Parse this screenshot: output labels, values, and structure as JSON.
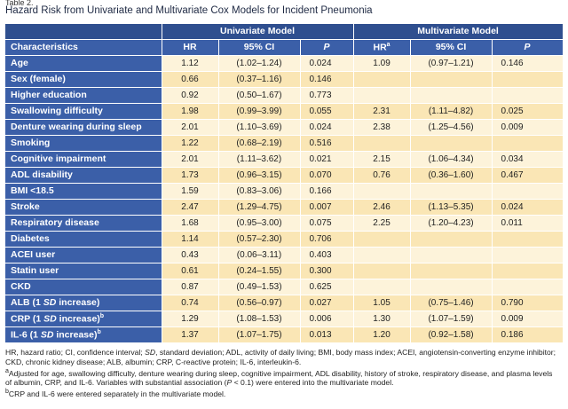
{
  "table_label": "Table 2.",
  "title": "Hazard Risk from Univariate and Multivariate Cox Models for Incident Pneumonia",
  "groups": {
    "univariate": "Univariate Model",
    "multivariate": "Multivariate Model"
  },
  "columns": {
    "characteristics": "Characteristics",
    "hr": "HR",
    "ci": "95% CI",
    "p": "P",
    "hr_m": "HR",
    "hr_m_sup": "a",
    "ci_m": "95% CI",
    "p_m": "P"
  },
  "rows": [
    {
      "name": "Age",
      "hr": "1.12",
      "ci": "(1.02–1.24)",
      "p": "0.024",
      "mhr": "1.09",
      "mci": "(0.97–1.21)",
      "mp": "0.146"
    },
    {
      "name": "Sex (female)",
      "hr": "0.66",
      "ci": "(0.37–1.16)",
      "p": "0.146",
      "mhr": "",
      "mci": "",
      "mp": ""
    },
    {
      "name": "Higher education",
      "hr": "0.92",
      "ci": "(0.50–1.67)",
      "p": "0.773",
      "mhr": "",
      "mci": "",
      "mp": ""
    },
    {
      "name": "Swallowing difficulty",
      "hr": "1.98",
      "ci": "(0.99–3.99)",
      "p": "0.055",
      "mhr": "2.31",
      "mci": "(1.11–4.82)",
      "mp": "0.025"
    },
    {
      "name": "Denture wearing during sleep",
      "hr": "2.01",
      "ci": "(1.10–3.69)",
      "p": "0.024",
      "mhr": "2.38",
      "mci": "(1.25–4.56)",
      "mp": "0.009"
    },
    {
      "name": "Smoking",
      "hr": "1.22",
      "ci": "(0.68–2.19)",
      "p": "0.516",
      "mhr": "",
      "mci": "",
      "mp": ""
    },
    {
      "name": "Cognitive impairment",
      "hr": "2.01",
      "ci": "(1.11–3.62)",
      "p": "0.021",
      "mhr": "2.15",
      "mci": "(1.06–4.34)",
      "mp": "0.034"
    },
    {
      "name": "ADL disability",
      "hr": "1.73",
      "ci": "(0.96–3.15)",
      "p": "0.070",
      "mhr": "0.76",
      "mci": "(0.36–1.60)",
      "mp": "0.467"
    },
    {
      "name": "BMI <18.5",
      "hr": "1.59",
      "ci": "(0.83–3.06)",
      "p": "0.166",
      "mhr": "",
      "mci": "",
      "mp": ""
    },
    {
      "name": "Stroke",
      "hr": "2.47",
      "ci": "(1.29–4.75)",
      "p": "0.007",
      "mhr": "2.46",
      "mci": "(1.13–5.35)",
      "mp": "0.024"
    },
    {
      "name": "Respiratory disease",
      "hr": "1.68",
      "ci": "(0.95–3.00)",
      "p": "0.075",
      "mhr": "2.25",
      "mci": "(1.20–4.23)",
      "mp": "0.011"
    },
    {
      "name": "Diabetes",
      "hr": "1.14",
      "ci": "(0.57–2.30)",
      "p": "0.706",
      "mhr": "",
      "mci": "",
      "mp": ""
    },
    {
      "name": "ACEI user",
      "hr": "0.43",
      "ci": "(0.06–3.11)",
      "p": "0.403",
      "mhr": "",
      "mci": "",
      "mp": ""
    },
    {
      "name": "Statin user",
      "hr": "0.61",
      "ci": "(0.24–1.55)",
      "p": "0.300",
      "mhr": "",
      "mci": "",
      "mp": ""
    },
    {
      "name": "CKD",
      "hr": "0.87",
      "ci": "(0.49–1.53)",
      "p": "0.625",
      "mhr": "",
      "mci": "",
      "mp": ""
    },
    {
      "name": "ALB (1 ",
      "name_sd": "SD",
      "name_tail": " increase)",
      "name_sup": "",
      "hr": "0.74",
      "ci": "(0.56–0.97)",
      "p": "0.027",
      "mhr": "1.05",
      "mci": "(0.75–1.46)",
      "mp": "0.790"
    },
    {
      "name": "CRP (1 ",
      "name_sd": "SD",
      "name_tail": " increase)",
      "name_sup": "b",
      "hr": "1.29",
      "ci": "(1.08–1.53)",
      "p": "0.006",
      "mhr": "1.30",
      "mci": "(1.07–1.59)",
      "mp": "0.009"
    },
    {
      "name": "IL-6 (1 ",
      "name_sd": "SD",
      "name_tail": " increase)",
      "name_sup": "b",
      "hr": "1.37",
      "ci": "(1.07–1.75)",
      "p": "0.013",
      "mhr": "1.20",
      "mci": "(0.92–1.58)",
      "mp": "0.186"
    }
  ],
  "notes": {
    "line1_a": "HR, hazard ratio; CI, confidence interval; ",
    "line1_sd": "SD",
    "line1_b": ", standard deviation; ADL, activity of daily living; BMI, body mass index; ACEI, angiotensin-converting enzyme inhibitor;",
    "line2": "CKD, chronic kidney disease; ALB, albumin; CRP, C-reactive protein; IL-6, interleukin-6.",
    "line3_sup": "a",
    "line3": "Adjusted for age, swallowing difficulty, denture wearing during sleep, cognitive impairment, ADL disability, history of stroke, respiratory disease, and plasma levels",
    "line4_a": "of albumin, CRP, and IL-6. Variables with substantial association (",
    "line4_p": "P",
    "line4_b": " < 0.1) were entered into the multivariate model.",
    "line5_sup": "b",
    "line5": "CRP and IL-6 were entered separately in the multivariate model."
  }
}
